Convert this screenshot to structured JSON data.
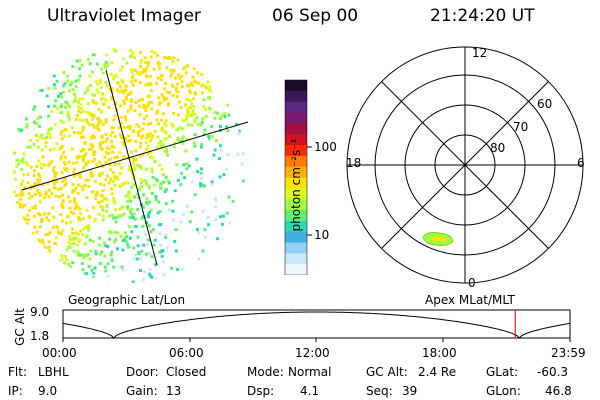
{
  "header": {
    "instrument": "Ultraviolet Imager",
    "date": "06 Sep 00",
    "time": "21:24:20 UT"
  },
  "colorbar": {
    "label": "photon cm⁻²s⁻¹",
    "ticks": [
      "100",
      "10"
    ],
    "colors": [
      "#1a0a28",
      "#3a1a55",
      "#5a2a80",
      "#7a1a70",
      "#a01040",
      "#d01020",
      "#ff2a00",
      "#ff7a00",
      "#ffb000",
      "#ffe000",
      "#d8ff20",
      "#a0ff40",
      "#60f070",
      "#30d8b0",
      "#40b0e0",
      "#90d0f0",
      "#c8e8f8",
      "#f0f8ff"
    ]
  },
  "polar_plot": {
    "mlt_labels": [
      "12",
      "18",
      "6",
      "0"
    ],
    "lat_labels": [
      "60",
      "70",
      "80"
    ]
  },
  "orbit": {
    "left_label": "Geographic Lat/Lon",
    "right_label": "Apex MLat/MLT",
    "axis_label": "GC Alt",
    "y_ticks": [
      "9.0",
      "1.8"
    ],
    "x_ticks": [
      "00:00",
      "06:00",
      "12:00",
      "18:00",
      "23:59"
    ],
    "marker_fraction": 0.892
  },
  "info": {
    "flt_label": "Flt:",
    "flt_value": "LBHL",
    "ip_label": "IP:",
    "ip_value": "9.0",
    "door_label": "Door:",
    "door_value": "Closed",
    "gain_label": "Gain:",
    "gain_value": "13",
    "mode_label": "Mode:",
    "mode_value": "Normal",
    "dsp_label": "Dsp:",
    "dsp_value": "4.1",
    "gcalt_label": "GC Alt:",
    "gcalt_value": "2.4 Re",
    "seq_label": "Seq:",
    "seq_value": "39",
    "glat_label": "GLat:",
    "glat_value": "-60.3",
    "glon_label": "GLon:",
    "glon_value": "46.8"
  }
}
